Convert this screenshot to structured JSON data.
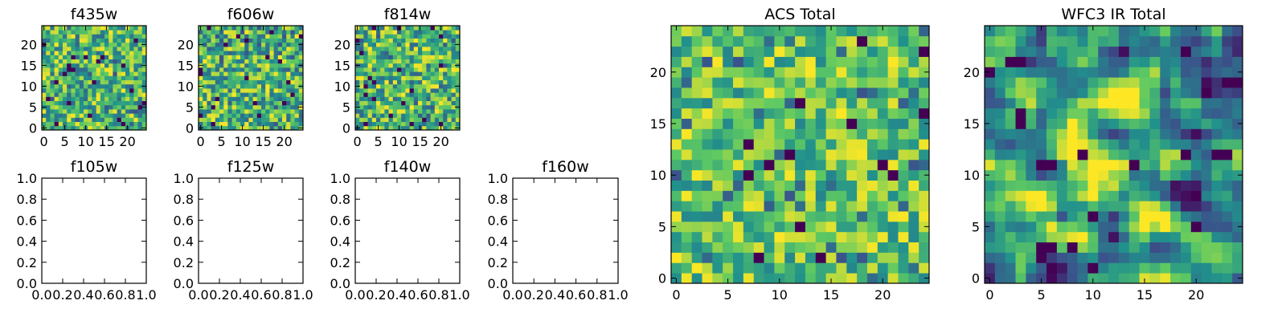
{
  "figure": {
    "colormap": [
      "#440154",
      "#3b528b",
      "#21918c",
      "#5ec962",
      "#fde725"
    ],
    "background": "#ffffff"
  },
  "chart_data": [
    {
      "id": "f435w",
      "type": "heatmap",
      "title": "f435w",
      "grid_size": 25,
      "xlim": [
        0,
        25
      ],
      "ylim": [
        0,
        25
      ],
      "xticks": [
        "0",
        "5",
        "10",
        "15",
        "20"
      ],
      "yticks": [
        "0",
        "5",
        "10",
        "15",
        "20"
      ],
      "seed": 11,
      "contrast": "noisy"
    },
    {
      "id": "f606w",
      "type": "heatmap",
      "title": "f606w",
      "grid_size": 25,
      "xlim": [
        0,
        25
      ],
      "ylim": [
        0,
        25
      ],
      "xticks": [
        "0",
        "5",
        "10",
        "15",
        "20"
      ],
      "yticks": [
        "0",
        "5",
        "10",
        "15",
        "20"
      ],
      "seed": 23,
      "contrast": "noisy"
    },
    {
      "id": "f814w",
      "type": "heatmap",
      "title": "f814w",
      "grid_size": 25,
      "xlim": [
        0,
        25
      ],
      "ylim": [
        0,
        25
      ],
      "xticks": [
        "0",
        "5",
        "10",
        "15",
        "20"
      ],
      "yticks": [
        "0",
        "5",
        "10",
        "15",
        "20"
      ],
      "seed": 37,
      "contrast": "noisy"
    },
    {
      "id": "f105w",
      "type": "empty",
      "title": "f105w",
      "xlim": [
        0,
        1
      ],
      "ylim": [
        0,
        1
      ],
      "xticks": [
        "0.0",
        "0.2",
        "0.4",
        "0.6",
        "0.8",
        "1.0"
      ],
      "yticks": [
        "0.0",
        "0.2",
        "0.4",
        "0.6",
        "0.8",
        "1.0"
      ]
    },
    {
      "id": "f125w",
      "type": "empty",
      "title": "f125w",
      "xlim": [
        0,
        1
      ],
      "ylim": [
        0,
        1
      ],
      "xticks": [
        "0.0",
        "0.2",
        "0.4",
        "0.6",
        "0.8",
        "1.0"
      ],
      "yticks": [
        "0.0",
        "0.2",
        "0.4",
        "0.6",
        "0.8",
        "1.0"
      ]
    },
    {
      "id": "f140w",
      "type": "empty",
      "title": "f140w",
      "xlim": [
        0,
        1
      ],
      "ylim": [
        0,
        1
      ],
      "xticks": [
        "0.0",
        "0.2",
        "0.4",
        "0.6",
        "0.8",
        "1.0"
      ],
      "yticks": [
        "0.0",
        "0.2",
        "0.4",
        "0.6",
        "0.8",
        "1.0"
      ]
    },
    {
      "id": "f160w",
      "type": "empty",
      "title": "f160w",
      "xlim": [
        0,
        1
      ],
      "ylim": [
        0,
        1
      ],
      "xticks": [
        "0.0",
        "0.2",
        "0.4",
        "0.6",
        "0.8",
        "1.0"
      ],
      "yticks": [
        "0.0",
        "0.2",
        "0.4",
        "0.6",
        "0.8",
        "1.0"
      ]
    },
    {
      "id": "acs-total",
      "type": "heatmap",
      "title": "ACS Total",
      "grid_size": 25,
      "xlim": [
        0,
        25
      ],
      "ylim": [
        0,
        25
      ],
      "xticks": [
        "0",
        "5",
        "10",
        "15",
        "20"
      ],
      "yticks": [
        "0",
        "5",
        "10",
        "15",
        "20"
      ],
      "seed": 53,
      "contrast": "bright"
    },
    {
      "id": "wfc3-ir-total",
      "type": "heatmap",
      "title": "WFC3 IR Total",
      "grid_size": 25,
      "xlim": [
        0,
        25
      ],
      "ylim": [
        0,
        25
      ],
      "xticks": [
        "0",
        "5",
        "10",
        "15",
        "20"
      ],
      "yticks": [
        "0",
        "5",
        "10",
        "15",
        "20"
      ],
      "seed": 71,
      "contrast": "smooth"
    }
  ]
}
